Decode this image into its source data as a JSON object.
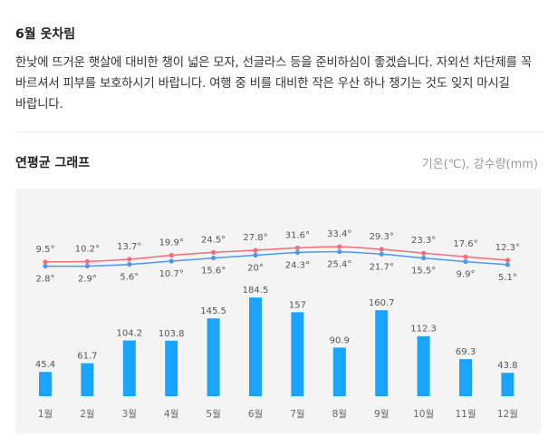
{
  "section": {
    "title": "6월 옷차림",
    "description": "한낮에 뜨거운 햇살에 대비한 챙이 넓은 모자, 선글라스 등을 준비하심이 좋겠습니다. 자외선 차단제를 꼭 바르셔서 피부를 보호하시기 바랍니다. 여행 중 비를 대비한 작은 우산 하나 챙기는 것도 잊지 마시길 바랍니다."
  },
  "graph": {
    "title": "연평균 그래프",
    "units": "기온(℃), 강수량(mm)"
  },
  "colors": {
    "high": "#f26d78",
    "low": "#4e97f0",
    "bar": "#1aa3ff",
    "panel": "#f4f4f4"
  },
  "chart_data": {
    "type": "line+bar",
    "categories": [
      "1월",
      "2월",
      "3월",
      "4월",
      "5월",
      "6월",
      "7월",
      "8월",
      "9월",
      "10월",
      "11월",
      "12월"
    ],
    "series": [
      {
        "name": "high",
        "values": [
          9.5,
          10.2,
          13.7,
          19.9,
          24.5,
          27.8,
          31.6,
          33.4,
          29.3,
          23.3,
          17.6,
          12.3
        ]
      },
      {
        "name": "low",
        "values": [
          2.8,
          2.9,
          5.6,
          10.7,
          15.6,
          20,
          24.3,
          25.4,
          21.7,
          15.5,
          9.9,
          5.1
        ]
      },
      {
        "name": "precipitation",
        "values": [
          45.4,
          61.7,
          104.2,
          103.8,
          145.5,
          184.5,
          157,
          90.9,
          160.7,
          112.3,
          69.3,
          43.8
        ]
      }
    ],
    "temp_labels_high": [
      "9.5°",
      "10.2°",
      "13.7°",
      "19.9°",
      "24.5°",
      "27.8°",
      "31.6°",
      "33.4°",
      "29.3°",
      "23.3°",
      "17.6°",
      "12.3°"
    ],
    "temp_labels_low": [
      "2.8°",
      "2.9°",
      "5.6°",
      "10.7°",
      "15.6°",
      "20°",
      "24.3°",
      "25.4°",
      "21.7°",
      "15.5°",
      "9.9°",
      "5.1°"
    ],
    "precip_labels": [
      "45.4",
      "61.7",
      "104.2",
      "103.8",
      "145.5",
      "184.5",
      "157",
      "90.9",
      "160.7",
      "112.3",
      "69.3",
      "43.8"
    ]
  }
}
